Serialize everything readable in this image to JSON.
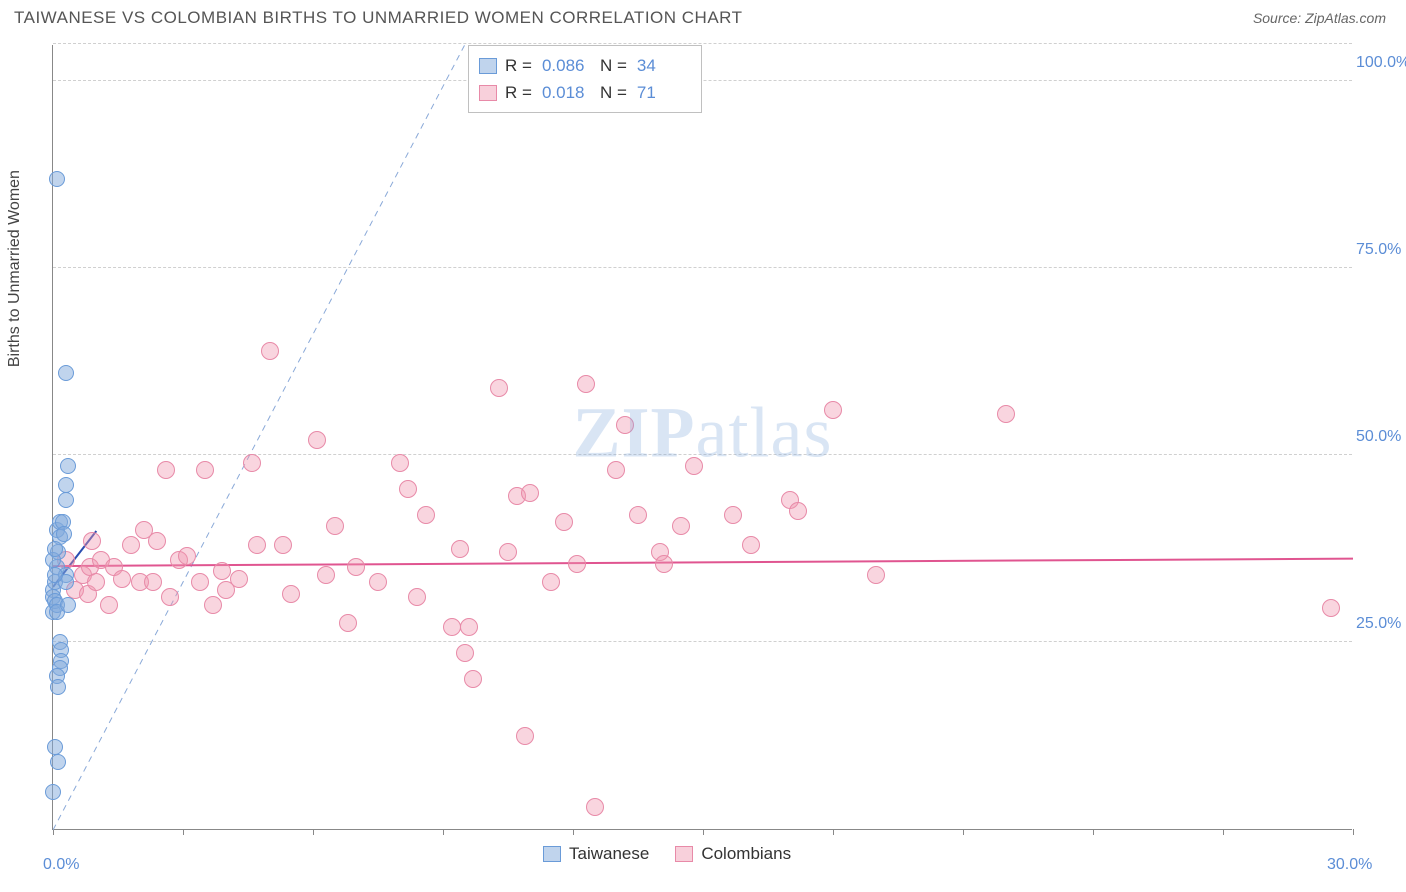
{
  "header": {
    "title": "TAIWANESE VS COLOMBIAN BIRTHS TO UNMARRIED WOMEN CORRELATION CHART",
    "source_prefix": "Source: ",
    "source_name": "ZipAtlas.com"
  },
  "chart": {
    "type": "scatter",
    "xlim": [
      0,
      30
    ],
    "ylim": [
      0,
      105
    ],
    "x_ticks": [
      0,
      3,
      6,
      9,
      12,
      15,
      18,
      21,
      24,
      27,
      30
    ],
    "x_tick_labels": {
      "0": "0.0%",
      "30": "30.0%"
    },
    "y_gridlines": [
      25,
      50,
      75,
      100,
      105
    ],
    "y_tick_labels": {
      "25": "25.0%",
      "50": "50.0%",
      "75": "75.0%",
      "100": "100.0%"
    },
    "y_axis_label": "Births to Unmarried Women",
    "background_color": "#ffffff",
    "grid_color": "#d0d0d0",
    "axis_color": "#888888",
    "tick_label_color": "#5b8dd6",
    "marker_radius_blue": 8,
    "marker_radius_pink": 9,
    "series": {
      "taiwanese": {
        "label": "Taiwanese",
        "color_fill": "rgba(130,170,220,0.5)",
        "color_stroke": "#6a9bd8",
        "R": "0.086",
        "N": "34",
        "trend": {
          "x1": 0,
          "y1": 32.5,
          "x2": 1.0,
          "y2": 40,
          "color": "#2a4db0",
          "width": 2
        },
        "points": [
          [
            0.0,
            32
          ],
          [
            0.05,
            33
          ],
          [
            0.1,
            35
          ],
          [
            0.1,
            40
          ],
          [
            0.12,
            37
          ],
          [
            0.15,
            41
          ],
          [
            0.15,
            39
          ],
          [
            0.0,
            29
          ],
          [
            0.0,
            31
          ],
          [
            0.05,
            30.5
          ],
          [
            0.1,
            30
          ],
          [
            0.1,
            29
          ],
          [
            0.15,
            25
          ],
          [
            0.18,
            24
          ],
          [
            0.18,
            22.5
          ],
          [
            0.15,
            21.5
          ],
          [
            0.1,
            20.5
          ],
          [
            0.12,
            19
          ],
          [
            0.05,
            11
          ],
          [
            0.12,
            9
          ],
          [
            0.0,
            5
          ],
          [
            0.3,
            44
          ],
          [
            0.3,
            46
          ],
          [
            0.35,
            48.5
          ],
          [
            0.3,
            61
          ],
          [
            0.1,
            87
          ],
          [
            0.22,
            41
          ],
          [
            0.25,
            39.5
          ],
          [
            0.3,
            34
          ],
          [
            0.3,
            33
          ],
          [
            0.35,
            30
          ],
          [
            0.0,
            36
          ],
          [
            0.05,
            34
          ],
          [
            0.05,
            37.5
          ]
        ]
      },
      "colombians": {
        "label": "Colombians",
        "color_fill": "rgba(240,150,175,0.4)",
        "color_stroke": "#e88aa8",
        "R": "0.018",
        "N": "71",
        "trend": {
          "x1": 0,
          "y1": 35.3,
          "x2": 30,
          "y2": 36.3,
          "color": "#e05590",
          "width": 2
        },
        "points": [
          [
            0.3,
            36
          ],
          [
            0.5,
            32
          ],
          [
            0.7,
            34
          ],
          [
            0.8,
            31.5
          ],
          [
            0.85,
            35
          ],
          [
            0.9,
            38.5
          ],
          [
            1.0,
            33
          ],
          [
            1.1,
            36
          ],
          [
            1.3,
            30
          ],
          [
            1.4,
            35
          ],
          [
            1.6,
            33.5
          ],
          [
            1.8,
            38
          ],
          [
            2.0,
            33
          ],
          [
            2.1,
            40
          ],
          [
            2.3,
            33
          ],
          [
            2.4,
            38.5
          ],
          [
            2.6,
            48
          ],
          [
            2.7,
            31
          ],
          [
            2.9,
            36
          ],
          [
            3.1,
            36.5
          ],
          [
            3.4,
            33
          ],
          [
            3.5,
            48
          ],
          [
            3.7,
            30
          ],
          [
            3.9,
            34.5
          ],
          [
            4.0,
            32
          ],
          [
            4.3,
            33.5
          ],
          [
            4.6,
            49
          ],
          [
            4.7,
            38
          ],
          [
            5.0,
            64
          ],
          [
            5.3,
            38
          ],
          [
            5.5,
            31.5
          ],
          [
            6.1,
            52
          ],
          [
            6.5,
            40.5
          ],
          [
            6.8,
            27.5
          ],
          [
            7.0,
            35
          ],
          [
            7.5,
            33
          ],
          [
            8.0,
            49
          ],
          [
            8.2,
            45.5
          ],
          [
            8.4,
            31
          ],
          [
            8.6,
            42
          ],
          [
            9.2,
            27
          ],
          [
            9.4,
            37.5
          ],
          [
            9.5,
            23.5
          ],
          [
            9.6,
            27
          ],
          [
            9.7,
            20
          ],
          [
            10.3,
            59
          ],
          [
            10.5,
            37
          ],
          [
            10.7,
            44.5
          ],
          [
            10.9,
            12.5
          ],
          [
            11.0,
            45
          ],
          [
            11.5,
            33
          ],
          [
            11.8,
            41
          ],
          [
            12.1,
            35.5
          ],
          [
            12.3,
            59.5
          ],
          [
            12.5,
            3
          ],
          [
            13.0,
            48
          ],
          [
            13.2,
            54
          ],
          [
            13.5,
            42
          ],
          [
            14.0,
            37
          ],
          [
            14.1,
            35.5
          ],
          [
            14.5,
            40.5
          ],
          [
            14.8,
            48.5
          ],
          [
            15.7,
            42
          ],
          [
            16.1,
            38
          ],
          [
            17.0,
            44
          ],
          [
            17.2,
            42.5
          ],
          [
            18.0,
            56
          ],
          [
            19.0,
            34
          ],
          [
            22.0,
            55.5
          ],
          [
            29.5,
            29.5
          ],
          [
            6.3,
            34
          ]
        ]
      }
    },
    "reference_line": {
      "x1": 0,
      "y1": 0,
      "x2": 9.5,
      "y2": 105,
      "color": "#8aa9d8",
      "dash": "6,5",
      "width": 1
    },
    "watermark": {
      "bold": "ZIP",
      "rest": "atlas"
    },
    "legend_top": {
      "rows": [
        {
          "swatch": "blue",
          "R_label": "R =",
          "R_val": "0.086",
          "N_label": "N =",
          "N_val": "34"
        },
        {
          "swatch": "pink",
          "R_label": "R =",
          "R_val": "0.018",
          "N_label": "N =",
          "N_val": "71"
        }
      ]
    },
    "legend_bottom": [
      {
        "swatch": "blue",
        "label": "Taiwanese"
      },
      {
        "swatch": "pink",
        "label": "Colombians"
      }
    ]
  }
}
